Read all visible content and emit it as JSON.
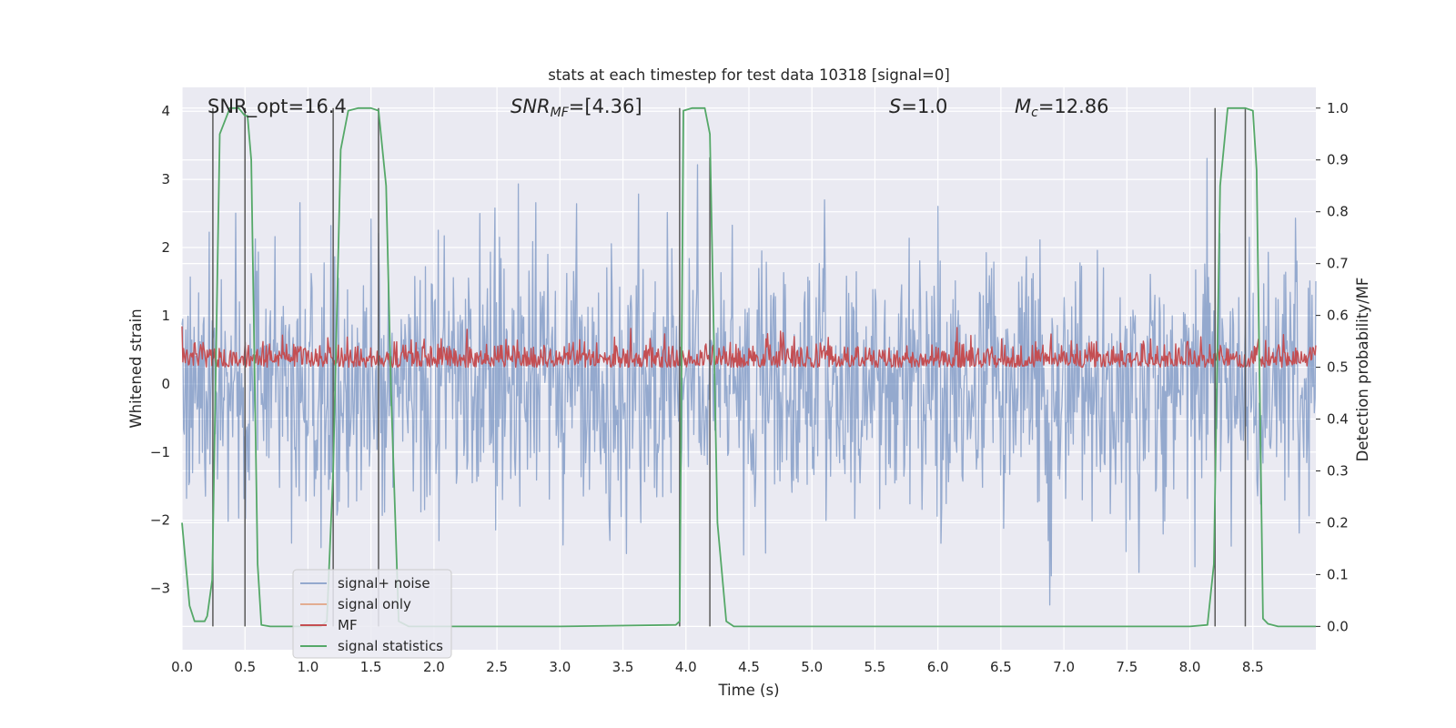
{
  "chart_data": {
    "type": "line",
    "title": "stats at each timestep for test data 10318 [signal=0]",
    "xlabel": "Time (s)",
    "ylabel": "Whitened strain",
    "ylabel_right": "Detection probability/MF",
    "xlim": [
      0.0,
      9.0
    ],
    "ylim": [
      -3.9,
      4.35
    ],
    "ylim_right": [
      -0.045,
      1.04
    ],
    "grid": true,
    "legend_position": "lower-left",
    "x_ticks": [
      "0.0",
      "0.5",
      "1.0",
      "1.5",
      "2.0",
      "2.5",
      "3.0",
      "3.5",
      "4.0",
      "4.5",
      "5.0",
      "5.5",
      "6.0",
      "6.5",
      "7.0",
      "7.5",
      "8.0",
      "8.5"
    ],
    "y_ticks_left": [
      "−3",
      "−2",
      "−1",
      "0",
      "1",
      "2",
      "3",
      "4"
    ],
    "y_ticks_right": [
      "0.0",
      "0.1",
      "0.2",
      "0.3",
      "0.4",
      "0.5",
      "0.6",
      "0.7",
      "0.8",
      "0.9",
      "1.0"
    ],
    "annotations": {
      "snr_opt": "SNR_opt=16.4",
      "snr_mf_main": "SNR",
      "snr_mf_sub": "MF",
      "snr_mf_value": "=[4.36]",
      "s_main": "S",
      "s_value": "=1.0",
      "mc_main": "M",
      "mc_sub": "c",
      "mc_value": "=12.86"
    },
    "series": [
      {
        "name": "signal+ noise",
        "color": "#4c72b0",
        "axis": "left",
        "description_kind": "dense noise",
        "envelope_typical": [
          -2.0,
          2.0
        ],
        "extremes": [
          -3.6,
          3.6
        ]
      },
      {
        "name": "signal only",
        "color": "#dd8452",
        "axis": "left",
        "values": []
      },
      {
        "name": "MF",
        "color": "#c44e52",
        "axis": "right",
        "description_kind": "dense noise",
        "baseline": 0.5,
        "range": [
          0.475,
          0.59
        ]
      },
      {
        "name": "signal statistics",
        "color": "#55a868",
        "axis": "right",
        "x": [
          0.0,
          0.06,
          0.1,
          0.18,
          0.2,
          0.24,
          0.3,
          0.38,
          0.45,
          0.5,
          0.52,
          0.55,
          0.6,
          0.63,
          0.7,
          0.9,
          1.0,
          1.1,
          1.15,
          1.2,
          1.26,
          1.32,
          1.4,
          1.5,
          1.56,
          1.62,
          1.66,
          1.72,
          1.8,
          2.0,
          3.0,
          3.92,
          3.95,
          3.98,
          4.05,
          4.15,
          4.19,
          4.25,
          4.32,
          4.38,
          4.5,
          5.0,
          6.0,
          7.0,
          8.0,
          8.14,
          8.19,
          8.24,
          8.3,
          8.44,
          8.5,
          8.53,
          8.58,
          8.62,
          8.7,
          9.0
        ],
        "y": [
          0.2,
          0.04,
          0.01,
          0.01,
          0.02,
          0.09,
          0.95,
          1.0,
          1.0,
          0.985,
          0.985,
          0.9,
          0.12,
          0.003,
          0.0,
          0.0,
          0.0,
          0.0,
          0.01,
          0.3,
          0.92,
          0.995,
          1.0,
          1.0,
          0.995,
          0.85,
          0.45,
          0.01,
          0.0,
          0.0,
          0.0,
          0.003,
          0.01,
          0.995,
          1.0,
          1.0,
          0.95,
          0.2,
          0.01,
          0.0,
          0.0,
          0.0,
          0.0,
          0.0,
          0.0,
          0.003,
          0.12,
          0.85,
          1.0,
          1.0,
          0.995,
          0.88,
          0.015,
          0.005,
          0.0,
          0.0
        ]
      }
    ],
    "vertical_lines": [
      {
        "x": 0.245,
        "ymax": 1.0
      },
      {
        "x": 0.5,
        "ymax": 1.0
      },
      {
        "x": 1.2,
        "ymax": 1.0
      },
      {
        "x": 1.56,
        "ymax": 1.0
      },
      {
        "x": 3.95,
        "ymax": 1.0
      },
      {
        "x": 4.19,
        "ymax": 0.905
      },
      {
        "x": 8.2,
        "ymax": 1.0
      },
      {
        "x": 8.44,
        "ymax": 1.0
      }
    ],
    "colors": {
      "axes_background": "#eaeaf2",
      "grid": "#ffffff",
      "vline": "#595959"
    }
  }
}
